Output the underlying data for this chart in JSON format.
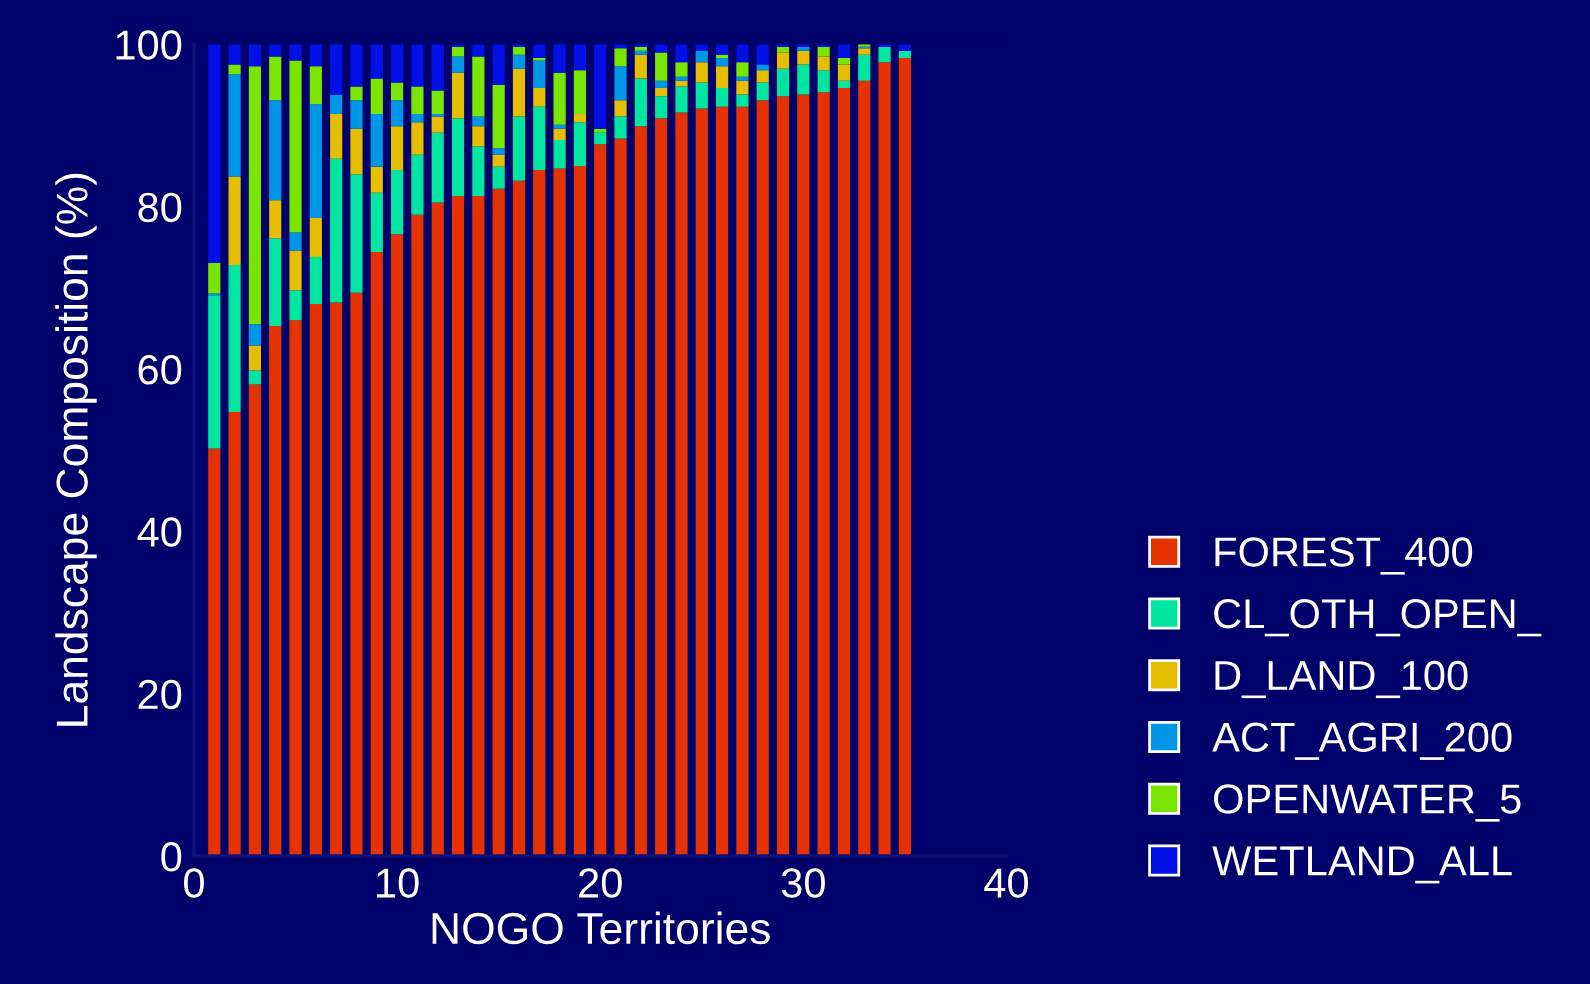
{
  "chart_data": {
    "type": "bar",
    "stacked": true,
    "xlabel": "NOGO Territories",
    "ylabel": "Landscape Composition (%)",
    "x": [
      1,
      2,
      3,
      4,
      5,
      6,
      7,
      8,
      9,
      10,
      11,
      12,
      13,
      14,
      15,
      16,
      17,
      18,
      19,
      20,
      21,
      22,
      23,
      24,
      25,
      26,
      27,
      28,
      29,
      30,
      31,
      32,
      33,
      34,
      35
    ],
    "xlim": [
      0,
      40
    ],
    "xticks": [
      0,
      10,
      20,
      30,
      40
    ],
    "ylim": [
      0,
      100
    ],
    "yticks": [
      0,
      20,
      40,
      60,
      80,
      100
    ],
    "grid": false,
    "legend": "right",
    "series": [
      {
        "name": "FOREST_400",
        "color": "#e63200",
        "values": [
          50.2,
          54.7,
          58.1,
          65.3,
          66.0,
          68.0,
          68.2,
          69.4,
          74.4,
          76.6,
          79.0,
          80.5,
          81.3,
          81.3,
          82.2,
          83.2,
          84.5,
          84.7,
          85.0,
          87.7,
          88.4,
          89.9,
          90.9,
          91.6,
          92.1,
          92.3,
          92.3,
          93.1,
          93.6,
          93.8,
          94.1,
          94.6,
          95.5,
          97.8,
          98.3
        ]
      },
      {
        "name": "CL_OTH_OPEN_",
        "color": "#00e6a0",
        "values": [
          18.8,
          18.1,
          1.7,
          10.8,
          3.7,
          5.8,
          17.7,
          14.6,
          7.3,
          7.9,
          7.4,
          8.6,
          9.6,
          6.1,
          2.7,
          7.9,
          7.8,
          3.5,
          5.4,
          1.4,
          2.7,
          5.9,
          2.7,
          3.2,
          3.2,
          2.3,
          1.5,
          2.2,
          3.4,
          3.7,
          2.7,
          0.9,
          3.2,
          1.9,
          0.9
        ]
      },
      {
        "name": "D_LAND_100",
        "color": "#e6be00",
        "values": [
          0,
          10.9,
          3.1,
          4.7,
          4.9,
          4.8,
          5.5,
          5.6,
          3.2,
          5.4,
          4.0,
          2.0,
          5.6,
          2.5,
          1.5,
          5.9,
          2.3,
          1.4,
          1.0,
          0,
          2.0,
          2.9,
          1.0,
          0.7,
          2.5,
          2.7,
          1.7,
          1.5,
          2.0,
          1.7,
          1.7,
          2.0,
          0.8,
          0,
          0
        ]
      },
      {
        "name": "ACT_AGRI_200",
        "color": "#0096e6",
        "values": [
          0.3,
          12.6,
          2.6,
          12.3,
          2.2,
          14.0,
          2.4,
          3.5,
          6.5,
          3.2,
          1.0,
          0.3,
          2.0,
          1.2,
          0.8,
          1.7,
          3.4,
          0.5,
          0,
          0,
          4.2,
          0.5,
          0.9,
          0.5,
          1.4,
          1.0,
          0.5,
          0.7,
          0,
          0.5,
          0,
          0,
          0.2,
          0,
          0
        ]
      },
      {
        "name": "OPENWATER_5",
        "color": "#78e600",
        "values": [
          3.8,
          1.2,
          31.8,
          5.4,
          21.2,
          4.7,
          0,
          1.7,
          4.4,
          2.2,
          3.4,
          2.9,
          1.2,
          7.4,
          7.8,
          1.0,
          0.3,
          6.4,
          5.4,
          0.5,
          2.2,
          0.5,
          3.5,
          1.8,
          0,
          0.4,
          1.8,
          0,
          0.7,
          0,
          1.2,
          0.8,
          0.3,
          0,
          0
        ]
      },
      {
        "name": "WETLAND_ALL",
        "color": "#0010e6",
        "values": [
          26.9,
          2.5,
          2.7,
          1.5,
          2.0,
          2.7,
          6.2,
          5.2,
          4.2,
          4.7,
          5.2,
          5.7,
          0.3,
          1.5,
          5.0,
          0.3,
          1.7,
          3.5,
          3.2,
          10.4,
          0.5,
          0.3,
          1.0,
          2.2,
          0.8,
          1.3,
          2.2,
          2.5,
          0.3,
          0.3,
          0.3,
          1.7,
          0,
          0.3,
          0.8
        ]
      }
    ]
  }
}
